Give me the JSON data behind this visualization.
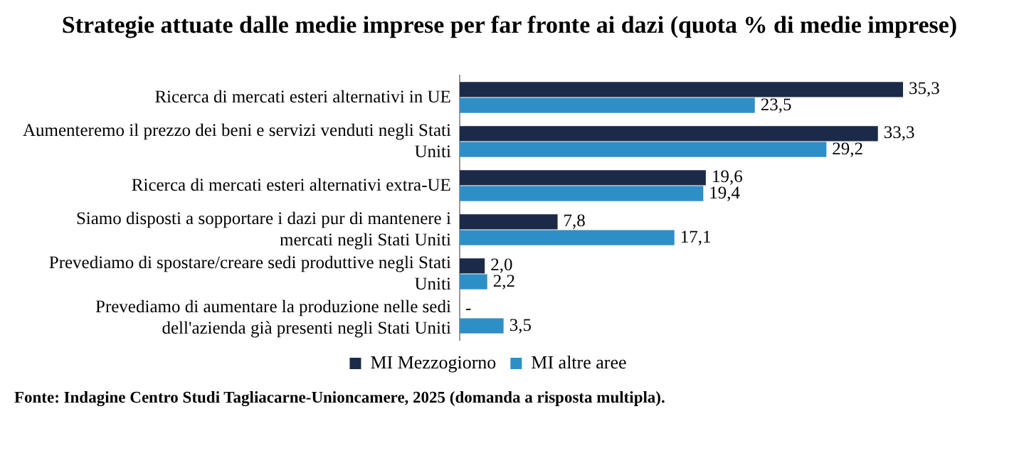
{
  "chart_data": {
    "type": "bar",
    "orientation": "horizontal",
    "title": "Strategie attuate dalle medie imprese per far fronte ai dazi (quota % di medie imprese)",
    "categories": [
      "Ricerca di mercati esteri alternativi in UE",
      "Aumenteremo il prezzo dei beni e servizi venduti negli Stati Uniti",
      "Ricerca di mercati esteri alternativi extra-UE",
      "Siamo disposti a sopportare i dazi pur di mantenere i mercati negli Stati Uniti",
      "Prevediamo di spostare/creare sedi produttive negli Stati Uniti",
      "Prevediamo di aumentare la produzione nelle sedi dell'azienda già presenti negli Stati Uniti"
    ],
    "series": [
      {
        "name": "MI Mezzogiorno",
        "color": "#1c2a4a",
        "values": [
          35.3,
          33.3,
          19.6,
          7.8,
          2.0,
          null
        ],
        "value_labels": [
          "35,3",
          "33,3",
          "19,6",
          "7,8",
          "2,0",
          "-"
        ]
      },
      {
        "name": "MI altre aree",
        "color": "#2e8fc6",
        "values": [
          23.5,
          29.2,
          19.4,
          17.1,
          2.2,
          3.5
        ],
        "value_labels": [
          "23,5",
          "29,2",
          "19,4",
          "17,1",
          "2,2",
          "3,5"
        ]
      }
    ],
    "tick_labels": "y",
    "legend": "bottom",
    "annotations": [
      "Fonte: Indagine Centro Studi Tagliacarne-Unioncamere, 2025 (domanda a risposta multipla)."
    ]
  }
}
